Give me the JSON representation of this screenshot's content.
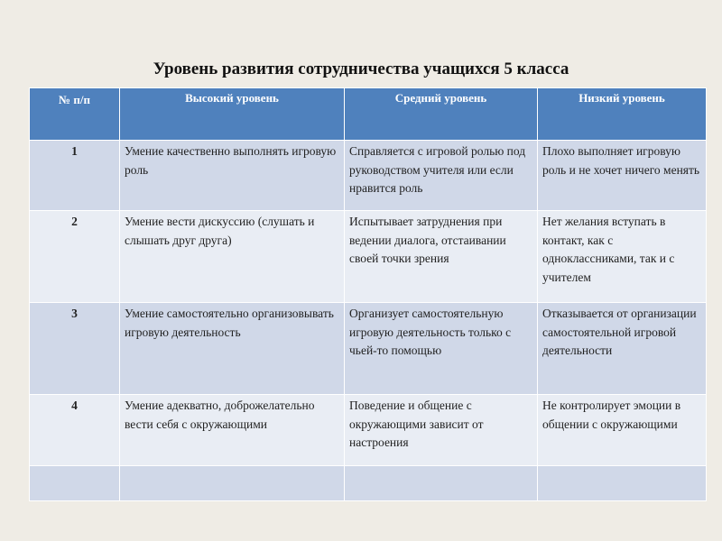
{
  "title": "Уровень развития сотрудничества учащихся 5 класса",
  "colors": {
    "header": "#4f81bd",
    "row_odd": "#d0d8e8",
    "row_even": "#e9edf4",
    "background": "#efece5"
  },
  "table": {
    "headers": [
      "№ п/п",
      "Высокий уровень",
      "Средний уровень",
      "Низкий уровень"
    ],
    "rows": [
      [
        "1",
        "Умение качественно выполнять игровую роль",
        "Справляется с игровой ролью под руководством учителя или если нравится роль",
        "Плохо выполняет игровую роль и не хочет ничего менять"
      ],
      [
        "2",
        "Умение вести дискуссию (слушать и слышать друг друга)",
        "Испытывает затруднения при ведении диалога, отстаивании своей точки зрения",
        "Нет желания вступать в контакт, как с одноклассниками, так и с учителем"
      ],
      [
        "3",
        "Умение самостоятельно организовывать игровую деятельность",
        "Организует самостоятельную игровую деятельность только с чьей-то помощью",
        "Отказывается от организации самостоятельной игровой деятельности"
      ],
      [
        "4",
        "Умение адекватно, доброжелательно вести себя с окружающими",
        "Поведение и общение с окружающими зависит от настроения",
        "Не контролирует эмоции в общении с окружающими"
      ],
      [
        "",
        "",
        "",
        ""
      ]
    ]
  }
}
